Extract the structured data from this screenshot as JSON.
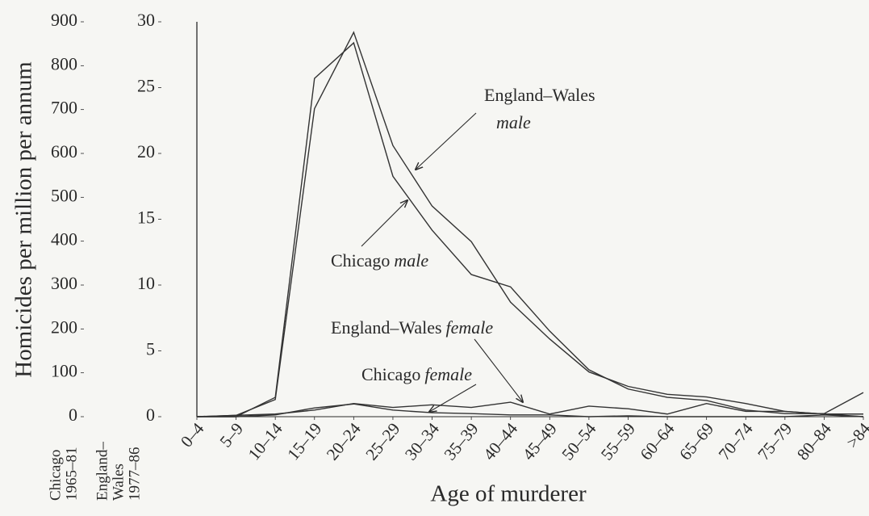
{
  "chart_data": {
    "type": "line",
    "y_label": "Homicides per million per annum",
    "x_label": "Age of murderer",
    "y_caption": [
      "Chicago",
      "1965–81"
    ],
    "y2_caption": [
      "England–",
      "Wales",
      "1977–86"
    ],
    "categories": [
      "0–4",
      "5–9",
      "10–14",
      "15–19",
      "20–24",
      "25–29",
      "30–34",
      "35–39",
      "40–44",
      "45–49",
      "50–54",
      "55–59",
      "60–64",
      "65–69",
      "70–74",
      "75–79",
      "80–84",
      ">84"
    ],
    "ylim": [
      0,
      900
    ],
    "yticks": [
      0,
      100,
      200,
      300,
      400,
      500,
      600,
      700,
      800,
      900
    ],
    "y2lim": [
      0,
      30
    ],
    "y2ticks": [
      0,
      5,
      10,
      15,
      20,
      25,
      30
    ],
    "series": [
      {
        "color": "#333333",
        "axis": "y2",
        "values": [
          0,
          0.1,
          1.3,
          23.4,
          29.2,
          20.6,
          16.0,
          13.3,
          8.7,
          5.9,
          3.4,
          2.3,
          1.7,
          1.5,
          1.0,
          0.4,
          0.2,
          0
        ]
      },
      {
        "color": "#333333",
        "axis": "y",
        "values": [
          0,
          0,
          44,
          771,
          852,
          548,
          425,
          324,
          296,
          195,
          107,
          63,
          44,
          37,
          15,
          7,
          7,
          55
        ]
      },
      {
        "color": "#333333",
        "axis": "y2",
        "values": [
          0,
          0.1,
          0.2,
          0.5,
          1.0,
          0.7,
          0.9,
          0.7,
          1.1,
          0.2,
          0.8,
          0.6,
          0.2,
          1.0,
          0.4,
          0.4,
          0.2,
          0.2
        ]
      },
      {
        "color": "#333333",
        "axis": "y",
        "values": [
          0,
          0,
          4,
          20,
          29,
          15,
          9,
          7,
          4,
          4,
          0,
          2,
          0,
          0,
          0,
          0,
          4,
          0
        ]
      }
    ],
    "annotations": [
      {
        "text": "England–Wales",
        "emphasis": "male"
      },
      {
        "text": "Chicago",
        "emphasis": "male"
      },
      {
        "text": "England–Wales",
        "emphasis": "female"
      },
      {
        "text": "Chicago",
        "emphasis": "female"
      }
    ]
  }
}
